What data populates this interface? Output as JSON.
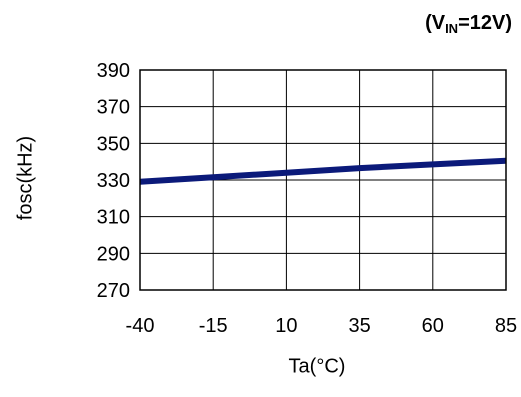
{
  "condition": {
    "prefix": "(V",
    "sub": "IN",
    "suffix": "=12V)"
  },
  "chart_data": {
    "type": "line",
    "xlabel": "Ta(°C)",
    "ylabel": "fosc(kHz)",
    "xlim": [
      -40,
      85
    ],
    "ylim": [
      270,
      390
    ],
    "xticks": [
      -40,
      -15,
      10,
      35,
      60,
      85
    ],
    "yticks": [
      270,
      290,
      310,
      330,
      350,
      370,
      390
    ],
    "grid": true,
    "series": [
      {
        "color": "#0b1a7a",
        "x": [
          -40,
          -15,
          10,
          35,
          60,
          85
        ],
        "y": [
          329,
          331.5,
          334,
          336.5,
          338.5,
          340.5
        ]
      }
    ]
  }
}
